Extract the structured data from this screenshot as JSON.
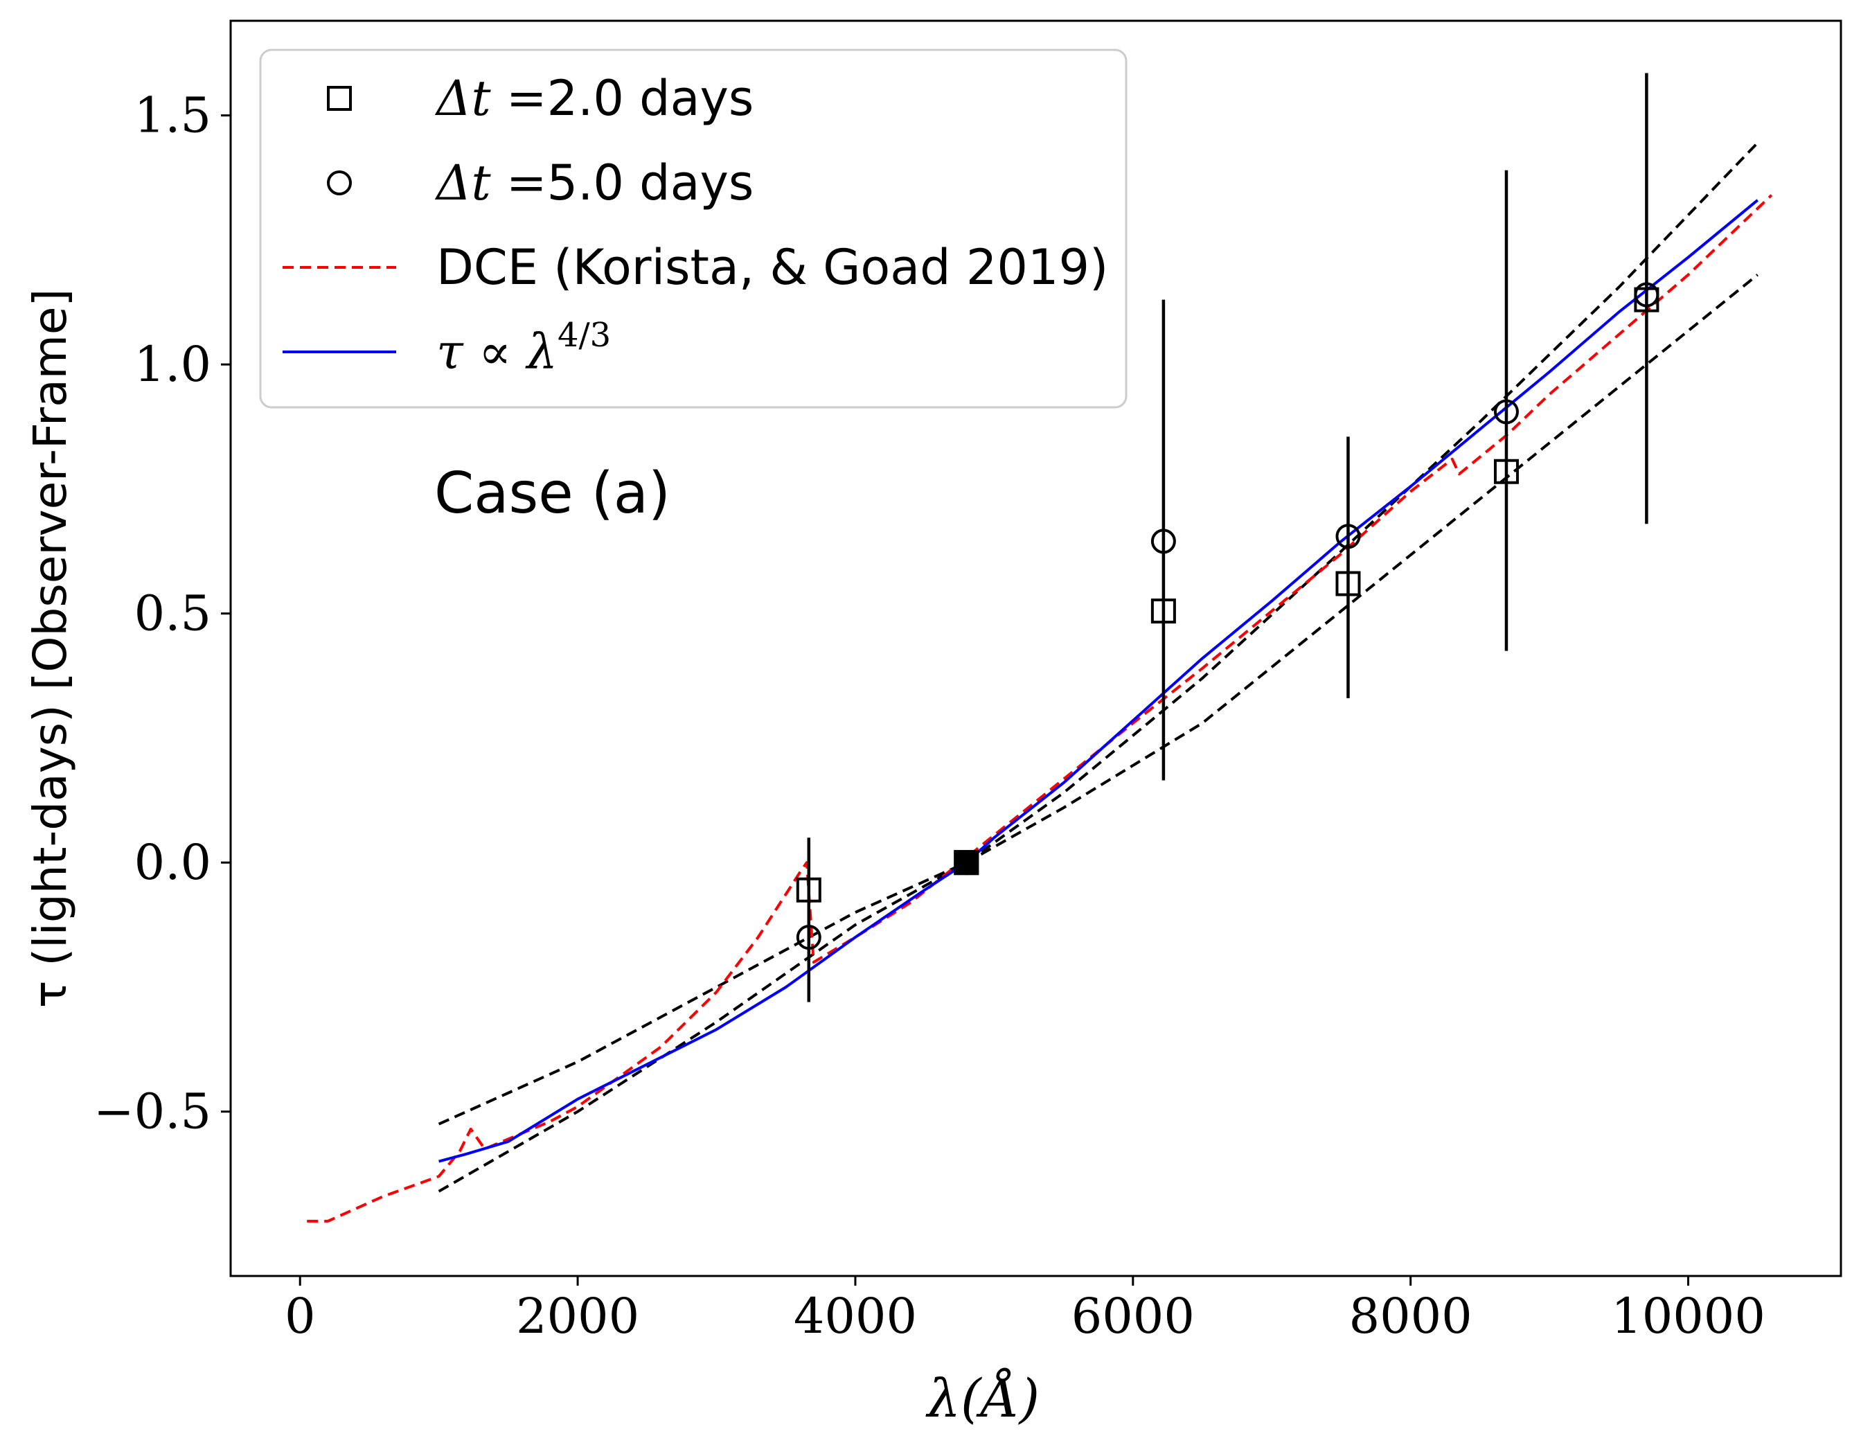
{
  "chart_data": {
    "type": "line",
    "title": "",
    "annotation": "Case (a)",
    "xlabel": "λ(Å)",
    "ylabel": "τ (light-days) [Observer-Frame]",
    "xlim": [
      -500,
      11100
    ],
    "ylim": [
      -0.83,
      1.69
    ],
    "xticks": [
      0,
      2000,
      4000,
      6000,
      8000,
      10000
    ],
    "xtick_labels": [
      "0",
      "2000",
      "4000",
      "6000",
      "8000",
      "10000"
    ],
    "yticks": [
      -0.5,
      0.0,
      0.5,
      1.0,
      1.5
    ],
    "ytick_labels": [
      "−0.5",
      "0.0",
      "0.5",
      "1.0",
      "1.5"
    ],
    "grid": false,
    "legend_position": "top-left",
    "legend": [
      {
        "key": "square",
        "marker": "square",
        "prefix": "Δt =",
        "label": "2.0 days"
      },
      {
        "key": "circle",
        "marker": "circle",
        "prefix": "Δt =",
        "label": "5.0 days"
      },
      {
        "key": "dce",
        "marker": "dashed-line",
        "color": "#ff0000",
        "label": "DCE (Korista, & Goad 2019)"
      },
      {
        "key": "fit",
        "marker": "solid-line",
        "color": "#0000ff",
        "prefix": "τ ∝ λ",
        "sup": "4/3",
        "label": ""
      }
    ],
    "series": [
      {
        "name": "Δt = 2.0 days",
        "kind": "points",
        "marker": "square",
        "color": "#000000",
        "x": [
          3665,
          4800,
          6220,
          7550,
          8690,
          9700
        ],
        "y": [
          -0.055,
          0.0,
          0.505,
          0.56,
          0.785,
          1.13
        ]
      },
      {
        "name": "Δt = 5.0 days",
        "kind": "points",
        "marker": "circle",
        "color": "#000000",
        "x": [
          3665,
          4800,
          6220,
          7550,
          8690,
          9700
        ],
        "y": [
          -0.15,
          0.0,
          0.645,
          0.655,
          0.905,
          1.14
        ]
      },
      {
        "name": "Error bars",
        "kind": "errorbar",
        "color": "#000000",
        "x": [
          3665,
          6220,
          7550,
          8690,
          9700
        ],
        "ylow": [
          -0.28,
          0.165,
          0.33,
          0.425,
          0.68
        ],
        "yhigh": [
          0.05,
          1.13,
          0.855,
          1.39,
          1.585
        ]
      },
      {
        "name": "DCE (Korista, & Goad 2019)",
        "kind": "line",
        "style": "dashed",
        "color": "#ff0000",
        "x": [
          50,
          200,
          400,
          600,
          800,
          1000,
          1150,
          1230,
          1330,
          1500,
          1800,
          2000,
          2300,
          2600,
          3000,
          3300,
          3600,
          3650,
          3700,
          4000,
          4400,
          4800,
          5200,
          5600,
          6000,
          6500,
          7000,
          7500,
          8000,
          8300,
          8350,
          8700,
          9000,
          9500,
          10000,
          10600
        ],
        "y": [
          -0.72,
          -0.72,
          -0.695,
          -0.67,
          -0.65,
          -0.63,
          -0.58,
          -0.535,
          -0.575,
          -0.555,
          -0.52,
          -0.49,
          -0.43,
          -0.37,
          -0.26,
          -0.15,
          -0.02,
          0.0,
          -0.2,
          -0.15,
          -0.08,
          0.01,
          0.1,
          0.19,
          0.28,
          0.39,
          0.505,
          0.62,
          0.745,
          0.81,
          0.78,
          0.86,
          0.94,
          1.06,
          1.18,
          1.34
        ]
      },
      {
        "name": "τ ∝ λ^(4/3)",
        "kind": "line",
        "style": "solid",
        "color": "#0000ff",
        "x": [
          1000,
          1200,
          1500,
          2000,
          2500,
          3000,
          3500,
          4000,
          4500,
          4800,
          5000,
          5500,
          6000,
          6500,
          7000,
          7500,
          8000,
          8500,
          9000,
          9500,
          10000,
          10500
        ],
        "y": [
          -0.6,
          -0.585,
          -0.56,
          -0.475,
          -0.405,
          -0.335,
          -0.25,
          -0.15,
          -0.055,
          0.0,
          0.05,
          0.16,
          0.285,
          0.41,
          0.525,
          0.645,
          0.755,
          0.87,
          0.985,
          1.105,
          1.215,
          1.33
        ]
      },
      {
        "name": "Upper bound",
        "kind": "line",
        "style": "dashed",
        "color": "#000000",
        "x": [
          1000,
          2000,
          3000,
          4000,
          4800,
          5500,
          6500,
          7500,
          8500,
          9500,
          10500
        ],
        "y": [
          -0.66,
          -0.5,
          -0.32,
          -0.125,
          0.0,
          0.14,
          0.37,
          0.625,
          0.885,
          1.155,
          1.445
        ]
      },
      {
        "name": "Lower bound",
        "kind": "line",
        "style": "dashed",
        "color": "#000000",
        "x": [
          1000,
          2000,
          3000,
          4000,
          4800,
          5500,
          6500,
          7500,
          8500,
          9500,
          10500
        ],
        "y": [
          -0.525,
          -0.4,
          -0.25,
          -0.1,
          0.0,
          0.11,
          0.28,
          0.505,
          0.73,
          0.955,
          1.18
        ]
      }
    ]
  }
}
